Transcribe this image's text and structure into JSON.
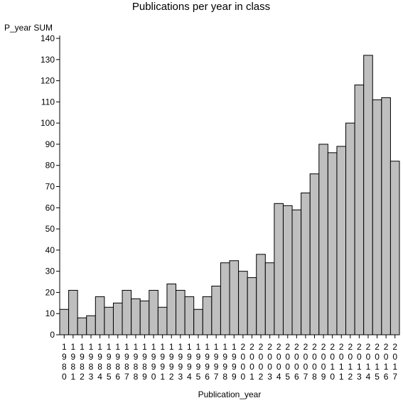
{
  "chart_data": {
    "type": "bar",
    "title": "Publications per year in class",
    "ylabel": "P_year SUM",
    "xlabel": "Publication_year",
    "ylim": [
      0,
      140
    ],
    "yticks": [
      0,
      10,
      20,
      30,
      40,
      50,
      60,
      70,
      80,
      90,
      100,
      110,
      120,
      130,
      140
    ],
    "categories": [
      "1980",
      "1981",
      "1982",
      "1983",
      "1984",
      "1985",
      "1986",
      "1987",
      "1988",
      "1989",
      "1990",
      "1991",
      "1992",
      "1993",
      "1994",
      "1995",
      "1996",
      "1997",
      "1998",
      "1999",
      "2000",
      "2001",
      "2002",
      "2003",
      "2004",
      "2005",
      "2006",
      "2007",
      "2008",
      "2009",
      "2010",
      "2011",
      "2012",
      "2013",
      "2014",
      "2015",
      "2016",
      "2017"
    ],
    "values": [
      12,
      21,
      8,
      9,
      18,
      13,
      15,
      21,
      17,
      16,
      21,
      13,
      24,
      21,
      18,
      12,
      18,
      23,
      34,
      35,
      30,
      27,
      38,
      34,
      62,
      61,
      59,
      67,
      76,
      90,
      86,
      89,
      100,
      118,
      132,
      111,
      112,
      82
    ],
    "colors": {
      "bar_fill": "#bfbfbf",
      "bar_stroke": "#000000"
    },
    "grid": false
  }
}
